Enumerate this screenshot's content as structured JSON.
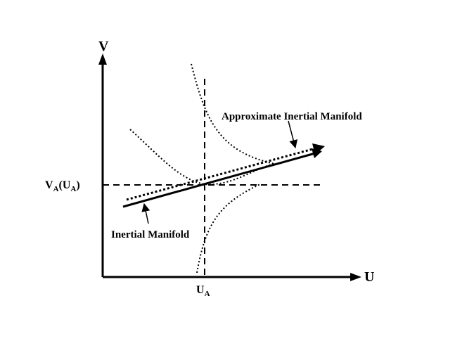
{
  "axes": {
    "y_label": "V",
    "x_label": "U",
    "x_tick_main": "U",
    "x_tick_sub": "A",
    "y_tick_main_1": "V",
    "y_tick_sub_1": "A",
    "y_tick_mid": "(U",
    "y_tick_sub_2": "A",
    "y_tick_end": ")"
  },
  "annotations": {
    "approximate": "Approximate Inertial Manifold",
    "inertial": "Inertial Manifold"
  },
  "colors": {
    "ink": "#000000",
    "background": "#ffffff"
  }
}
